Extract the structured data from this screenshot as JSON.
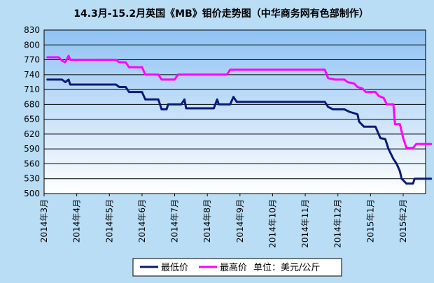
{
  "chart_data": {
    "type": "line",
    "title": "14.3月-15.2月英国《MB》钼价走势图（中华商务网有色部制作）",
    "xlabel": "",
    "ylabel": "",
    "ylim": [
      500,
      830
    ],
    "yticks": [
      500,
      530,
      560,
      590,
      620,
      650,
      680,
      710,
      740,
      770,
      800,
      830
    ],
    "xlim": [
      0,
      11.3
    ],
    "x_ticks": [
      {
        "x": 0,
        "label": "2014年3月"
      },
      {
        "x": 1,
        "label": "2014年4月"
      },
      {
        "x": 2,
        "label": "2014年5月"
      },
      {
        "x": 3,
        "label": "2014年6月"
      },
      {
        "x": 4,
        "label": "2014年7月"
      },
      {
        "x": 5,
        "label": "2014年8月"
      },
      {
        "x": 6,
        "label": "2014年9月"
      },
      {
        "x": 7,
        "label": "2014年10月"
      },
      {
        "x": 8,
        "label": "2014年11月"
      },
      {
        "x": 9,
        "label": "2014年12月"
      },
      {
        "x": 10,
        "label": "2015年1月"
      },
      {
        "x": 11,
        "label": "2015年2月"
      }
    ],
    "grid": true,
    "legend_position": "bottom",
    "unit_note": "单位：美元/公斤",
    "series": [
      {
        "name": "最低价",
        "color": "#0a1a7a",
        "points": [
          [
            0.1,
            730
          ],
          [
            0.55,
            730
          ],
          [
            0.65,
            725
          ],
          [
            0.75,
            730
          ],
          [
            0.8,
            720
          ],
          [
            2.2,
            720
          ],
          [
            2.3,
            715
          ],
          [
            2.5,
            715
          ],
          [
            2.6,
            705
          ],
          [
            3.0,
            705
          ],
          [
            3.1,
            690
          ],
          [
            3.5,
            690
          ],
          [
            3.6,
            670
          ],
          [
            3.75,
            670
          ],
          [
            3.8,
            680
          ],
          [
            4.2,
            680
          ],
          [
            4.3,
            690
          ],
          [
            4.35,
            672
          ],
          [
            5.2,
            672
          ],
          [
            5.3,
            690
          ],
          [
            5.35,
            680
          ],
          [
            5.7,
            680
          ],
          [
            5.8,
            695
          ],
          [
            5.9,
            685
          ],
          [
            8.6,
            685
          ],
          [
            8.7,
            675
          ],
          [
            8.85,
            670
          ],
          [
            9.2,
            670
          ],
          [
            9.35,
            665
          ],
          [
            9.6,
            660
          ],
          [
            9.65,
            645
          ],
          [
            9.8,
            635
          ],
          [
            10.15,
            635
          ],
          [
            10.3,
            612
          ],
          [
            10.45,
            610
          ],
          [
            10.55,
            590
          ],
          [
            10.7,
            570
          ],
          [
            10.8,
            560
          ],
          [
            10.9,
            545
          ],
          [
            10.95,
            530
          ],
          [
            11.1,
            520
          ],
          [
            11.3,
            520
          ],
          [
            11.35,
            530
          ],
          [
            11.85,
            530
          ]
        ]
      },
      {
        "name": "最高价",
        "color": "#ff00ff",
        "points": [
          [
            0.1,
            775
          ],
          [
            0.45,
            775
          ],
          [
            0.55,
            768
          ],
          [
            0.65,
            765
          ],
          [
            0.75,
            778
          ],
          [
            0.8,
            770
          ],
          [
            2.2,
            770
          ],
          [
            2.3,
            765
          ],
          [
            2.5,
            765
          ],
          [
            2.6,
            755
          ],
          [
            3.0,
            755
          ],
          [
            3.1,
            740
          ],
          [
            3.5,
            740
          ],
          [
            3.6,
            730
          ],
          [
            4.0,
            730
          ],
          [
            4.1,
            740
          ],
          [
            5.6,
            740
          ],
          [
            5.7,
            750
          ],
          [
            8.6,
            750
          ],
          [
            8.7,
            733
          ],
          [
            8.9,
            730
          ],
          [
            9.2,
            730
          ],
          [
            9.3,
            725
          ],
          [
            9.5,
            722
          ],
          [
            9.6,
            715
          ],
          [
            9.75,
            712
          ],
          [
            9.85,
            705
          ],
          [
            10.15,
            705
          ],
          [
            10.25,
            697
          ],
          [
            10.4,
            693
          ],
          [
            10.5,
            680
          ],
          [
            10.7,
            680
          ],
          [
            10.75,
            640
          ],
          [
            10.9,
            640
          ],
          [
            11.0,
            612
          ],
          [
            11.1,
            592
          ],
          [
            11.3,
            592
          ],
          [
            11.4,
            600
          ],
          [
            11.85,
            600
          ]
        ]
      }
    ]
  }
}
